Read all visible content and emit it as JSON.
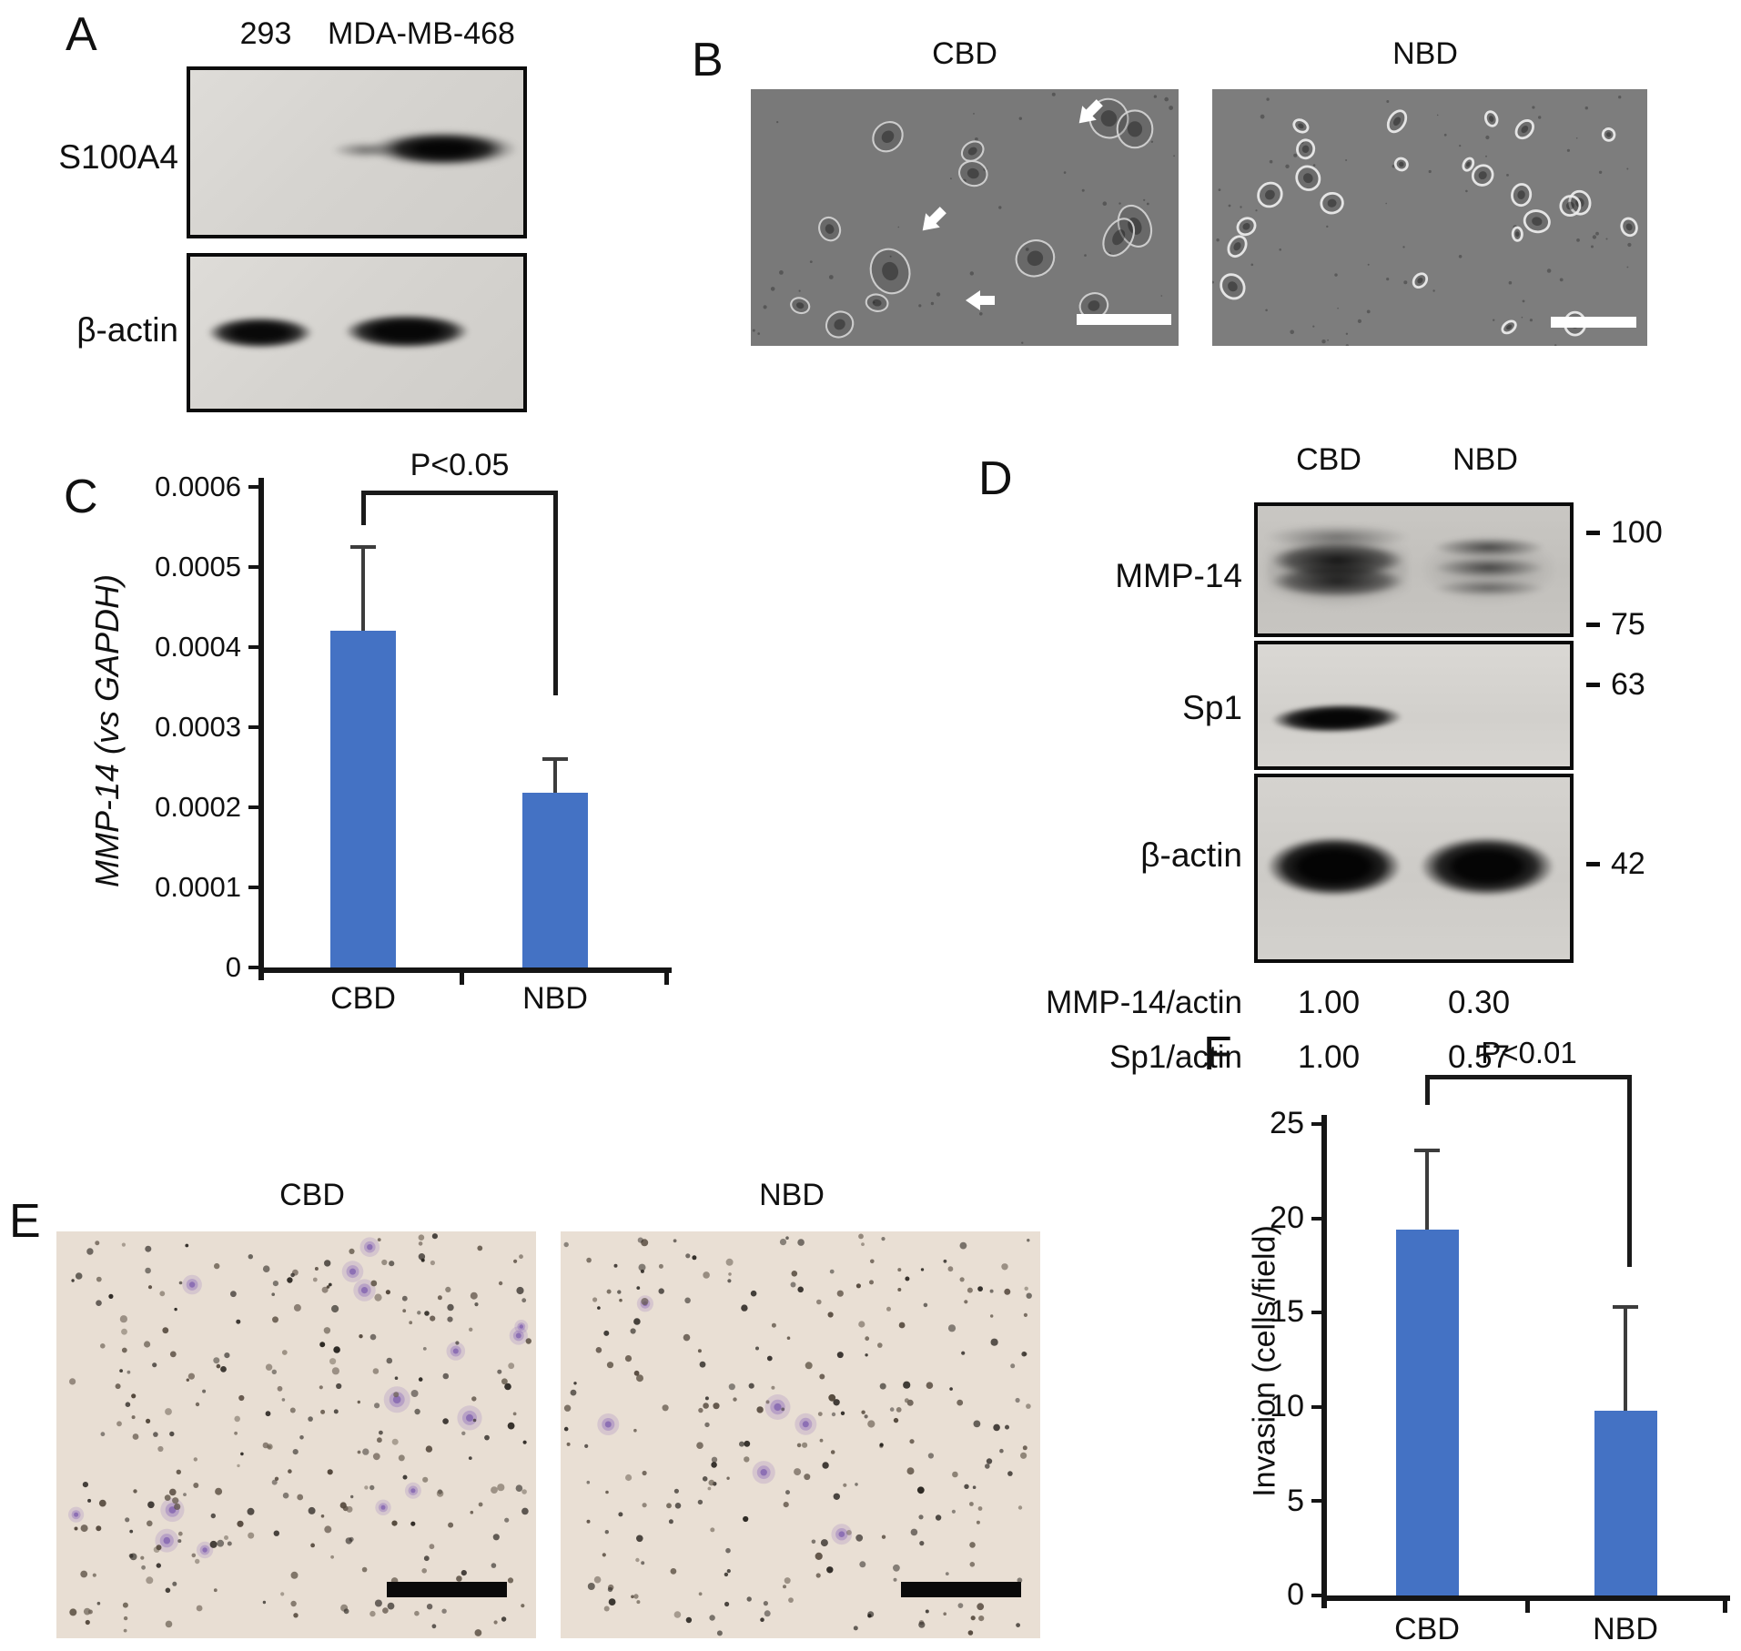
{
  "panels": {
    "A": {
      "label": "A",
      "lanes": [
        "293",
        "MDA-MB-468"
      ],
      "blots": [
        {
          "name": "S100A4"
        },
        {
          "name": "β-actin"
        }
      ]
    },
    "B": {
      "label": "B",
      "images": [
        {
          "title": "CBD"
        },
        {
          "title": "NBD"
        }
      ]
    },
    "C": {
      "label": "C"
    },
    "D": {
      "label": "D",
      "lanes": [
        "CBD",
        "NBD"
      ],
      "blots": [
        {
          "name": "MMP-14"
        },
        {
          "name": "Sp1"
        },
        {
          "name": "β-actin"
        }
      ],
      "markers": [
        "100",
        "75",
        "63",
        "42"
      ],
      "quant": [
        {
          "label": "MMP-14/actin",
          "values": [
            "1.00",
            "0.30"
          ]
        },
        {
          "label": "Sp1/actin",
          "values": [
            "1.00",
            "0.57"
          ]
        }
      ]
    },
    "E": {
      "label": "E",
      "images": [
        {
          "title": "CBD"
        },
        {
          "title": "NBD"
        }
      ]
    },
    "F": {
      "label": "F"
    }
  },
  "chart_data": [
    {
      "id": "C",
      "type": "bar",
      "categories": [
        "CBD",
        "NBD"
      ],
      "values": [
        0.00042,
        0.000218
      ],
      "errors_upper": [
        0.000105,
        4.2e-05
      ],
      "title": "",
      "xlabel": "",
      "ylabel": "MMP-14 (vs GAPDH)",
      "yticks": [
        "0",
        "0.0001",
        "0.0002",
        "0.0003",
        "0.0004",
        "0.0005",
        "0.0006"
      ],
      "ylim": [
        0,
        0.0006
      ],
      "annotation": "P<0.05",
      "legend": false,
      "grid": false,
      "bar_color": "#4472C4"
    },
    {
      "id": "F",
      "type": "bar",
      "categories": [
        "CBD",
        "NBD"
      ],
      "values": [
        19.4,
        9.8
      ],
      "errors_upper": [
        4.2,
        5.5
      ],
      "title": "",
      "xlabel": "",
      "ylabel": "Invasion (cells/field)",
      "yticks": [
        "0",
        "5",
        "10",
        "15",
        "20",
        "25"
      ],
      "ylim": [
        0,
        25
      ],
      "annotation": "P<0.01",
      "legend": false,
      "grid": false,
      "bar_color": "#4472C4"
    }
  ]
}
